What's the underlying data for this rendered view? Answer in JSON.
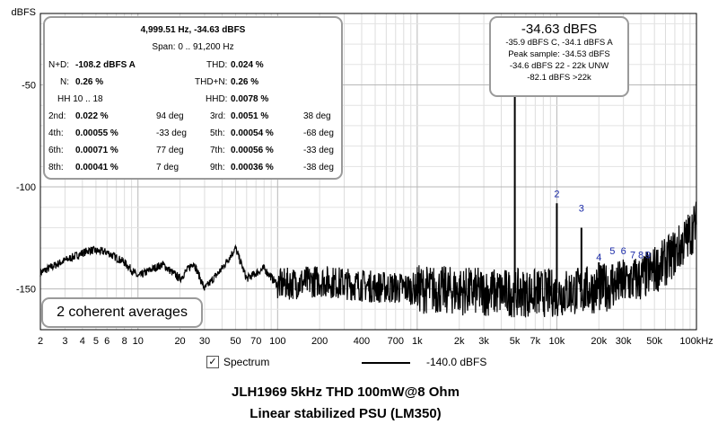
{
  "chart_data": {
    "type": "line",
    "ylabel": "dBFS",
    "xunit": "kHz",
    "xscale": "log",
    "xlim": [
      2,
      100000
    ],
    "ylim": [
      -170,
      -15
    ],
    "grid": true,
    "x_ticks": [
      {
        "v": 2,
        "t": "2"
      },
      {
        "v": 3,
        "t": "3"
      },
      {
        "v": 4,
        "t": "4"
      },
      {
        "v": 5,
        "t": "5"
      },
      {
        "v": 6,
        "t": "6"
      },
      {
        "v": 8,
        "t": "8"
      },
      {
        "v": 10,
        "t": "10"
      },
      {
        "v": 20,
        "t": "20"
      },
      {
        "v": 30,
        "t": "30"
      },
      {
        "v": 50,
        "t": "50"
      },
      {
        "v": 70,
        "t": "70"
      },
      {
        "v": 100,
        "t": "100"
      },
      {
        "v": 200,
        "t": "200"
      },
      {
        "v": 400,
        "t": "400"
      },
      {
        "v": 700,
        "t": "700"
      },
      {
        "v": 1000,
        "t": "1k"
      },
      {
        "v": 2000,
        "t": "2k"
      },
      {
        "v": 3000,
        "t": "3k"
      },
      {
        "v": 5000,
        "t": "5k"
      },
      {
        "v": 7000,
        "t": "7k"
      },
      {
        "v": 10000,
        "t": "10k"
      },
      {
        "v": 20000,
        "t": "20k"
      },
      {
        "v": 30000,
        "t": "30k"
      },
      {
        "v": 50000,
        "t": "50k"
      },
      {
        "v": 100000,
        "t": "100kHz"
      }
    ],
    "y_ticks": [
      {
        "v": -50,
        "t": "-50"
      },
      {
        "v": -100,
        "t": "-100"
      },
      {
        "v": -150,
        "t": "-150"
      }
    ],
    "harmonics": [
      {
        "label": "2",
        "x": 10000,
        "y": -105
      },
      {
        "label": "3",
        "x": 15000,
        "y": -112
      },
      {
        "label": "4",
        "x": 20000,
        "y": -136
      },
      {
        "label": "5",
        "x": 25000,
        "y": -133
      },
      {
        "label": "6",
        "x": 30000,
        "y": -133
      },
      {
        "label": "7",
        "x": 35000,
        "y": -135
      },
      {
        "label": "8",
        "x": 40000,
        "y": -135
      },
      {
        "label": "9",
        "x": 45000,
        "y": -135
      }
    ],
    "series": [
      {
        "color": "#000000",
        "peaks": [
          {
            "x": 5000,
            "y": -34.63
          },
          {
            "x": 10000,
            "y": -108
          },
          {
            "x": 15000,
            "y": -120
          },
          {
            "x": 20000,
            "y": -137
          },
          {
            "x": 25000,
            "y": -138
          },
          {
            "x": 30000,
            "y": -139
          }
        ],
        "floor": [
          {
            "x": 2,
            "y": -142
          },
          {
            "x": 3,
            "y": -136
          },
          {
            "x": 4.5,
            "y": -131
          },
          {
            "x": 6,
            "y": -132
          },
          {
            "x": 8,
            "y": -137
          },
          {
            "x": 10,
            "y": -144
          },
          {
            "x": 12,
            "y": -141
          },
          {
            "x": 15,
            "y": -138
          },
          {
            "x": 20,
            "y": -145
          },
          {
            "x": 25,
            "y": -137
          },
          {
            "x": 30,
            "y": -150
          },
          {
            "x": 40,
            "y": -140
          },
          {
            "x": 50,
            "y": -130
          },
          {
            "x": 60,
            "y": -145
          },
          {
            "x": 80,
            "y": -140
          },
          {
            "x": 100,
            "y": -148
          },
          {
            "x": 200,
            "y": -146
          },
          {
            "x": 500,
            "y": -149
          },
          {
            "x": 1000,
            "y": -150
          },
          {
            "x": 2000,
            "y": -151
          },
          {
            "x": 5000,
            "y": -152
          },
          {
            "x": 10000,
            "y": -152
          },
          {
            "x": 20000,
            "y": -150
          },
          {
            "x": 40000,
            "y": -145
          },
          {
            "x": 60000,
            "y": -137
          },
          {
            "x": 80000,
            "y": -128
          },
          {
            "x": 100000,
            "y": -118
          }
        ]
      }
    ]
  },
  "stats_box": {
    "freq_line": "4,999.51 Hz, -34.63 dBFS",
    "span_label": "Span: 0 .. 91,200 Hz",
    "nd_label": "N+D:",
    "nd_value": "-108.2 dBFS A",
    "thd_label": "THD:",
    "thd_value": "0.024 %",
    "n_label": "N:",
    "n_value": "0.26 %",
    "thdn_label": "THD+N:",
    "thdn_value": "0.26 %",
    "hh_label": "HH 10 .. 18",
    "hhd_label": "HHD:",
    "hhd_value": "0.0078 %",
    "harm_rows": [
      {
        "l1": "2nd:",
        "v1": "0.022 %",
        "d1": "94 deg",
        "l2": "3rd:",
        "v2": "0.0051 %",
        "d2": "38 deg"
      },
      {
        "l1": "4th:",
        "v1": "0.00055 %",
        "d1": "-33 deg",
        "l2": "5th:",
        "v2": "0.00054 %",
        "d2": "-68 deg"
      },
      {
        "l1": "6th:",
        "v1": "0.00071 %",
        "d1": "77 deg",
        "l2": "7th:",
        "v2": "0.00056 %",
        "d2": "-33 deg"
      },
      {
        "l1": "8th:",
        "v1": "0.00041 %",
        "d1": "7 deg",
        "l2": "9th:",
        "v2": "0.00036 %",
        "d2": "-38 deg"
      }
    ]
  },
  "peak_box": {
    "title": "-34.63 dBFS",
    "line1": "-35.9 dBFS C, -34.1 dBFS A",
    "line2": "Peak sample: -34.53 dBFS",
    "line3": "-34.6 dBFS 22 - 22k UNW",
    "line4": "-82.1 dBFS >22k"
  },
  "averages_label": "2 coherent averages",
  "legend": {
    "checkbox_mark": "✓",
    "series_label": "Spectrum",
    "level_value": "-140.0 dBFS"
  },
  "captions": {
    "line1": "JLH1969 5kHz THD 100mW@8 Ohm",
    "line2": "Linear stabilized PSU (LM350)"
  }
}
